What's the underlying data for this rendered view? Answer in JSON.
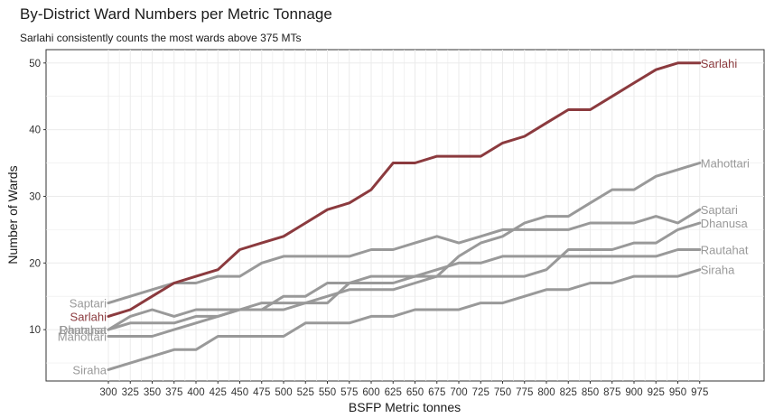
{
  "chart_data": {
    "type": "line",
    "title": "By-District Ward Numbers per Metric Tonnage",
    "subtitle": "Sarlahi consistently counts the most wards above 375 MTs",
    "xlabel": "BSFP Metric tonnes",
    "ylabel": "Number of Wards",
    "x": [
      300,
      325,
      350,
      375,
      400,
      425,
      450,
      475,
      500,
      525,
      550,
      575,
      600,
      625,
      650,
      675,
      700,
      725,
      750,
      775,
      800,
      825,
      850,
      875,
      900,
      925,
      950,
      975
    ],
    "ylim": [
      2.3,
      52
    ],
    "yticks": [
      10,
      20,
      30,
      40,
      50
    ],
    "grid": true,
    "legend": "direct labels at both line ends",
    "colors": {
      "highlight": "#8b3a3e",
      "other": "#999999",
      "grid": "#ebebeb"
    },
    "series": [
      {
        "name": "Sarlahi",
        "highlight": true,
        "values": [
          12,
          13,
          15,
          17,
          18,
          19,
          22,
          23,
          24,
          26,
          28,
          29,
          31,
          35,
          35,
          36,
          36,
          36,
          38,
          39,
          41,
          43,
          43,
          45,
          47,
          49,
          50,
          50
        ]
      },
      {
        "name": "Mahottari",
        "highlight": false,
        "values": [
          9,
          9,
          9,
          10,
          11,
          12,
          13,
          13,
          13,
          14,
          15,
          16,
          16,
          16,
          17,
          18,
          21,
          23,
          24,
          26,
          27,
          27,
          29,
          31,
          31,
          33,
          34,
          35
        ]
      },
      {
        "name": "Saptari",
        "highlight": false,
        "values": [
          14,
          15,
          16,
          17,
          17,
          18,
          18,
          20,
          21,
          21,
          21,
          21,
          22,
          22,
          23,
          24,
          23,
          24,
          25,
          25,
          25,
          25,
          26,
          26,
          26,
          27,
          26,
          28
        ]
      },
      {
        "name": "Dhanusa",
        "highlight": false,
        "values": [
          10,
          11,
          11,
          11,
          12,
          12,
          13,
          14,
          14,
          14,
          14,
          17,
          17,
          17,
          18,
          18,
          18,
          18,
          18,
          18,
          19,
          22,
          22,
          22,
          23,
          23,
          25,
          26
        ]
      },
      {
        "name": "Rautahat",
        "highlight": false,
        "values": [
          10,
          12,
          13,
          12,
          13,
          13,
          13,
          13,
          15,
          15,
          17,
          17,
          18,
          18,
          18,
          19,
          20,
          20,
          21,
          21,
          21,
          21,
          21,
          21,
          21,
          21,
          22,
          22
        ]
      },
      {
        "name": "Siraha",
        "highlight": false,
        "values": [
          4,
          5,
          6,
          7,
          7,
          9,
          9,
          9,
          9,
          11,
          11,
          11,
          12,
          12,
          13,
          13,
          13,
          14,
          14,
          15,
          16,
          16,
          17,
          17,
          18,
          18,
          18,
          19
        ]
      }
    ]
  }
}
